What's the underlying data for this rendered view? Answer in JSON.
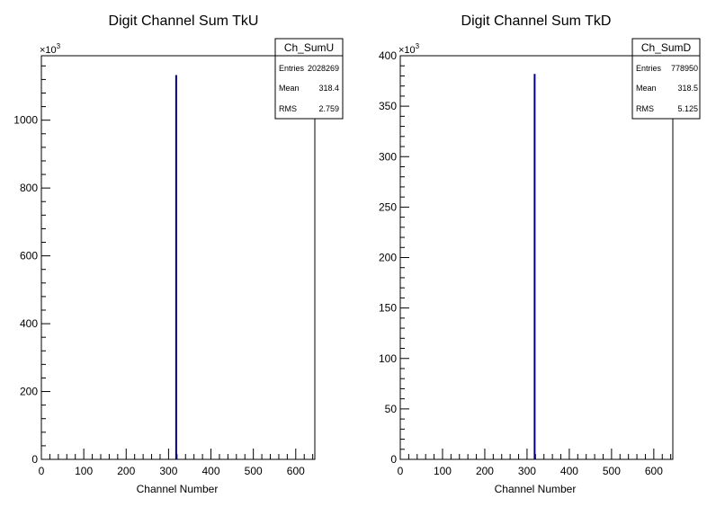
{
  "colors": {
    "histogram_line": "#000080",
    "axis": "#000000",
    "background": "#ffffff"
  },
  "chart_data": [
    {
      "type": "bar",
      "title": "Digit Channel Sum TkU",
      "xlabel": "Channel Number",
      "ylabel": "",
      "y_exponent_label": "×10",
      "y_exponent_power": "3",
      "xlim": [
        0,
        645
      ],
      "ylim": [
        0,
        1190
      ],
      "x_ticks": [
        0,
        100,
        200,
        300,
        400,
        500,
        600
      ],
      "y_ticks": [
        0,
        200,
        400,
        600,
        800,
        1000
      ],
      "bins": [
        {
          "x": 318,
          "value": 1133
        }
      ],
      "stats": {
        "name": "Ch_SumU",
        "rows": [
          {
            "label": "Entries",
            "value": "2028269"
          },
          {
            "label": "Mean",
            "value": "318.4"
          },
          {
            "label": "RMS",
            "value": "2.759"
          }
        ]
      }
    },
    {
      "type": "bar",
      "title": "Digit Channel Sum TkD",
      "xlabel": "Channel Number",
      "ylabel": "",
      "y_exponent_label": "×10",
      "y_exponent_power": "3",
      "xlim": [
        0,
        645
      ],
      "ylim": [
        0,
        400
      ],
      "x_ticks": [
        0,
        100,
        200,
        300,
        400,
        500,
        600
      ],
      "y_ticks": [
        0,
        50,
        100,
        150,
        200,
        250,
        300,
        350,
        400
      ],
      "bins": [
        {
          "x": 318,
          "value": 382
        }
      ],
      "stats": {
        "name": "Ch_SumD",
        "rows": [
          {
            "label": "Entries",
            "value": "778950"
          },
          {
            "label": "Mean",
            "value": "318.5"
          },
          {
            "label": "RMS",
            "value": "5.125"
          }
        ]
      }
    }
  ]
}
